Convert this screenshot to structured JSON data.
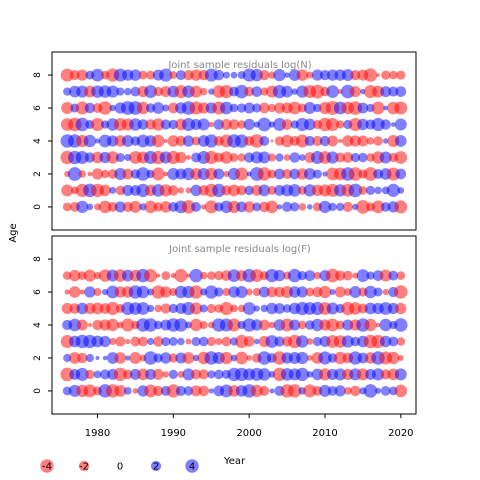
{
  "chart_data": {
    "type": "scatter",
    "subtype": "bubble residual plot",
    "ylabel": "Age",
    "xlabel": "Year",
    "xlim": [
      1974,
      2022
    ],
    "x_ticks": [
      1980,
      1990,
      2000,
      2010,
      2020
    ],
    "y_ticks": [
      0,
      2,
      4,
      6,
      8
    ],
    "colors": {
      "positive": "#0000ff",
      "negative": "#ff0000",
      "opacity": 0.5
    },
    "panels": [
      {
        "title": "Joint sample residuals log(N)",
        "ylim": [
          -1.4,
          9.4
        ],
        "years": [
          1976,
          2020
        ],
        "ages": [
          0,
          8
        ],
        "seed": 11
      },
      {
        "title": "Joint sample residuals log(F)",
        "ylim": [
          -1.4,
          9.4
        ],
        "years": [
          1976,
          2020
        ],
        "ages": [
          0,
          7
        ],
        "seed": 29
      }
    ],
    "legend": {
      "values": [
        -4,
        -2,
        0,
        2,
        4
      ],
      "labels": [
        "-4",
        "-2",
        "0",
        "2",
        "4"
      ],
      "title": "Year"
    }
  }
}
